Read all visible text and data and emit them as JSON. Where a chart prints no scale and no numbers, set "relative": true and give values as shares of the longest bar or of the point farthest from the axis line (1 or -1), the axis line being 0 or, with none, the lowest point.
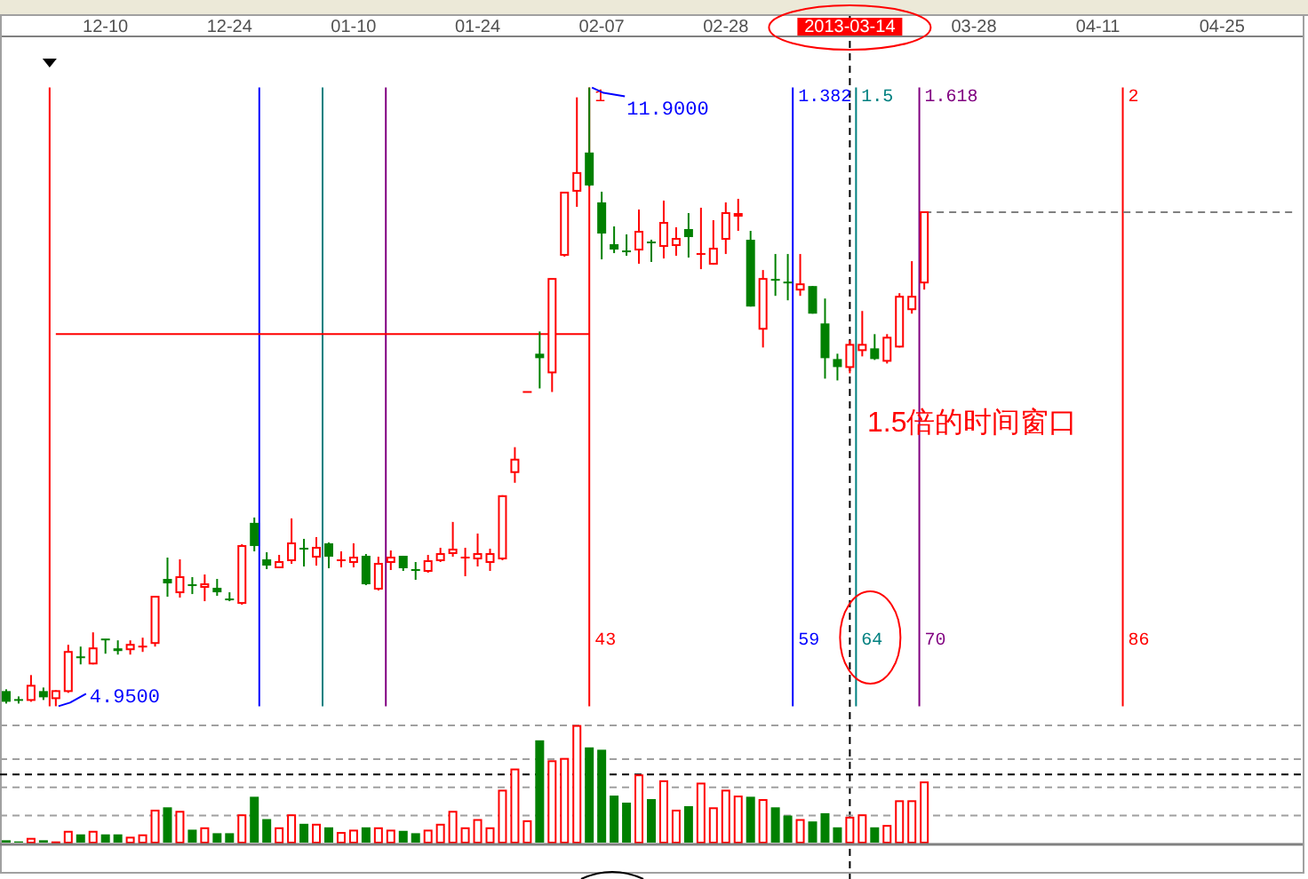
{
  "chart_data": [
    {
      "type": "candlestick",
      "tick_labels": "x",
      "categories": [
        null,
        null,
        null,
        null,
        null,
        null,
        null,
        null,
        "12-10",
        null,
        null,
        null,
        null,
        null,
        null,
        null,
        null,
        null,
        "12-24",
        null,
        null,
        null,
        null,
        null,
        null,
        null,
        null,
        null,
        "01-10",
        null,
        null,
        null,
        null,
        null,
        null,
        null,
        null,
        null,
        "01-24",
        null,
        null,
        null,
        null,
        null,
        null,
        null,
        null,
        null,
        "02-07",
        null,
        null,
        null,
        null,
        null,
        null,
        null,
        null,
        null,
        "02-28",
        null,
        null,
        null,
        null,
        null,
        null,
        null,
        null,
        null,
        "2013-03-14",
        null,
        null,
        null,
        null,
        null,
        null,
        null,
        null,
        null,
        "03-28",
        null,
        null,
        null,
        null,
        null,
        null,
        null,
        null,
        null,
        "04-11",
        null,
        null,
        null,
        null,
        null,
        null,
        null,
        null,
        null,
        "04-25",
        null,
        null,
        null,
        null,
        null,
        null
      ],
      "ohlc": [
        [
          5.12,
          5.14,
          4.98,
          5.0
        ],
        [
          5.02,
          5.06,
          4.98,
          5.02
        ],
        [
          5.02,
          5.3,
          5.0,
          5.18
        ],
        [
          5.12,
          5.16,
          5.02,
          5.05
        ],
        [
          5.04,
          5.13,
          4.95,
          5.12
        ],
        [
          5.12,
          5.64,
          5.1,
          5.56
        ],
        [
          5.5,
          5.62,
          5.42,
          5.5
        ],
        [
          5.43,
          5.78,
          5.42,
          5.6
        ],
        [
          5.7,
          5.7,
          5.54,
          5.7
        ],
        [
          5.6,
          5.69,
          5.53,
          5.57
        ],
        [
          5.59,
          5.69,
          5.53,
          5.64
        ],
        [
          5.62,
          5.72,
          5.56,
          5.62
        ],
        [
          5.66,
          6.19,
          5.62,
          6.18
        ],
        [
          6.38,
          6.62,
          6.18,
          6.33
        ],
        [
          6.23,
          6.6,
          6.17,
          6.4
        ],
        [
          6.31,
          6.4,
          6.21,
          6.31
        ],
        [
          6.29,
          6.43,
          6.13,
          6.32
        ],
        [
          6.28,
          6.38,
          6.19,
          6.23
        ],
        [
          6.15,
          6.23,
          6.13,
          6.15
        ],
        [
          6.11,
          6.77,
          6.09,
          6.75
        ],
        [
          7.01,
          7.07,
          6.69,
          6.75
        ],
        [
          6.6,
          6.68,
          6.49,
          6.53
        ],
        [
          6.51,
          6.65,
          6.5,
          6.57
        ],
        [
          6.59,
          7.06,
          6.55,
          6.78
        ],
        [
          6.72,
          6.83,
          6.52,
          6.72
        ],
        [
          6.63,
          6.85,
          6.53,
          6.73
        ],
        [
          6.78,
          6.79,
          6.5,
          6.63
        ],
        [
          6.59,
          6.69,
          6.51,
          6.59
        ],
        [
          6.57,
          6.78,
          6.51,
          6.62
        ],
        [
          6.64,
          6.66,
          6.31,
          6.32
        ],
        [
          6.27,
          6.63,
          6.25,
          6.55
        ],
        [
          6.57,
          6.7,
          6.48,
          6.62
        ],
        [
          6.64,
          6.64,
          6.47,
          6.5
        ],
        [
          6.48,
          6.57,
          6.37,
          6.48
        ],
        [
          6.47,
          6.65,
          6.45,
          6.58
        ],
        [
          6.59,
          6.73,
          6.57,
          6.66
        ],
        [
          6.67,
          7.02,
          6.63,
          6.71
        ],
        [
          6.62,
          6.73,
          6.41,
          6.62
        ],
        [
          6.61,
          6.89,
          6.52,
          6.66
        ],
        [
          6.57,
          6.72,
          6.47,
          6.66
        ],
        [
          6.61,
          7.32,
          6.59,
          7.31
        ],
        [
          7.58,
          7.86,
          7.46,
          7.72
        ],
        [
          8.48,
          8.48,
          8.48,
          8.48
        ],
        [
          8.91,
          9.16,
          8.52,
          8.86
        ],
        [
          8.7,
          9.75,
          8.48,
          9.75
        ],
        [
          10.02,
          10.72,
          10.0,
          10.72
        ],
        [
          10.74,
          11.79,
          10.56,
          10.94
        ],
        [
          11.17,
          11.9,
          10.79,
          10.8
        ],
        [
          10.61,
          10.73,
          9.97,
          10.26
        ],
        [
          10.14,
          10.34,
          10.04,
          10.08
        ],
        [
          10.06,
          10.25,
          10.01,
          10.06
        ],
        [
          10.08,
          10.53,
          9.92,
          10.28
        ],
        [
          10.16,
          10.19,
          9.94,
          10.16
        ],
        [
          10.12,
          10.63,
          9.98,
          10.38
        ],
        [
          10.13,
          10.33,
          10.01,
          10.2
        ],
        [
          10.31,
          10.49,
          9.99,
          10.22
        ],
        [
          10.03,
          10.55,
          9.86,
          10.03
        ],
        [
          9.92,
          10.41,
          9.91,
          10.09
        ],
        [
          10.2,
          10.61,
          10.03,
          10.49
        ],
        [
          10.46,
          10.65,
          10.29,
          10.48
        ],
        [
          10.19,
          10.29,
          9.44,
          9.44
        ],
        [
          9.19,
          9.85,
          8.98,
          9.75
        ],
        [
          9.74,
          10.03,
          9.56,
          9.74
        ],
        [
          9.71,
          10.03,
          9.51,
          9.71
        ],
        [
          9.63,
          10.03,
          9.56,
          9.69
        ],
        [
          9.67,
          9.67,
          9.36,
          9.36
        ],
        [
          9.25,
          9.53,
          8.63,
          8.86
        ],
        [
          8.85,
          8.91,
          8.61,
          8.76
        ],
        [
          8.76,
          9.06,
          8.69,
          9.01
        ],
        [
          8.95,
          9.39,
          8.88,
          9.01
        ],
        [
          8.97,
          9.13,
          8.84,
          8.85
        ],
        [
          8.83,
          9.13,
          8.8,
          9.09
        ],
        [
          8.99,
          9.59,
          8.98,
          9.55
        ],
        [
          9.41,
          9.95,
          9.36,
          9.55
        ],
        [
          9.71,
          10.5,
          9.63,
          10.5
        ],
        null,
        null,
        null,
        null,
        null,
        null,
        null,
        null,
        null,
        null,
        null,
        null,
        null,
        null,
        null,
        null,
        null,
        null,
        null,
        null,
        null,
        null,
        null,
        null,
        null,
        null,
        null,
        null,
        null,
        null
      ],
      "colors": [
        "#008000",
        "#008000",
        "#ff0000",
        "#008000",
        "#ff0000",
        "#ff0000",
        "#008000",
        "#ff0000",
        "#008000",
        "#008000",
        "#ff0000",
        "#ff0000",
        "#ff0000",
        "#008000",
        "#ff0000",
        "#008000",
        "#ff0000",
        "#008000",
        "#008000",
        "#ff0000",
        "#008000",
        "#008000",
        "#ff0000",
        "#ff0000",
        "#008000",
        "#ff0000",
        "#008000",
        "#ff0000",
        "#ff0000",
        "#008000",
        "#ff0000",
        "#ff0000",
        "#008000",
        "#008000",
        "#ff0000",
        "#ff0000",
        "#ff0000",
        "#ff0000",
        "#ff0000",
        "#ff0000",
        "#ff0000",
        "#ff0000",
        "#ff0000",
        "#008000",
        "#ff0000",
        "#ff0000",
        "#ff0000",
        "#008000",
        "#008000",
        "#008000",
        "#008000",
        "#ff0000",
        "#008000",
        "#ff0000",
        "#ff0000",
        "#008000",
        "#ff0000",
        "#ff0000",
        "#ff0000",
        "#ff0000",
        "#008000",
        "#ff0000",
        "#008000",
        "#008000",
        "#ff0000",
        "#008000",
        "#008000",
        "#008000",
        "#ff0000",
        "#ff0000",
        "#008000",
        "#ff0000",
        "#ff0000",
        "#ff0000",
        "#ff0000",
        null,
        null,
        null,
        null,
        null,
        null,
        null,
        null,
        null,
        null,
        null,
        null,
        null,
        null,
        null,
        null,
        null,
        null,
        null,
        null,
        null,
        null,
        null,
        null,
        null,
        null,
        null,
        null,
        null,
        null
      ],
      "series": [
        {
          "type": "line",
          "color": "#ff0000",
          "values": [
            null,
            null,
            null,
            null,
            9.13,
            9.13,
            9.13,
            9.13,
            9.13,
            9.13,
            9.13,
            9.13,
            9.13,
            9.13,
            9.13,
            9.13,
            9.13,
            9.13,
            9.13,
            9.13,
            9.13,
            9.13,
            9.13,
            9.13,
            9.13,
            9.13,
            9.13,
            9.13,
            9.13,
            9.13,
            9.13,
            9.13,
            9.13,
            9.13,
            9.13,
            9.13,
            9.13,
            9.13,
            9.13,
            9.13,
            9.13,
            9.13,
            9.13,
            9.13,
            9.13,
            9.13,
            9.13,
            9.13,
            null,
            null,
            null,
            null,
            null,
            null,
            null,
            null,
            null,
            null,
            null,
            null,
            null,
            null,
            null,
            null,
            null,
            null,
            null,
            null,
            null,
            null,
            null,
            null,
            null,
            null,
            null,
            null,
            null,
            null,
            null,
            null,
            null,
            null,
            null,
            null,
            null,
            null,
            null,
            null,
            null,
            null,
            null,
            null,
            null,
            null,
            null,
            null,
            null,
            null,
            null,
            null,
            null,
            null,
            null,
            null,
            null
          ]
        },
        {
          "type": "line",
          "color": "#808080",
          "line_style": "dashed",
          "values": [
            null,
            null,
            null,
            null,
            null,
            null,
            null,
            null,
            null,
            null,
            null,
            null,
            null,
            null,
            null,
            null,
            null,
            null,
            null,
            null,
            null,
            null,
            null,
            null,
            null,
            null,
            null,
            null,
            null,
            null,
            null,
            null,
            null,
            null,
            null,
            null,
            null,
            null,
            null,
            null,
            null,
            null,
            null,
            null,
            null,
            null,
            null,
            null,
            null,
            null,
            null,
            null,
            null,
            null,
            null,
            null,
            null,
            null,
            null,
            null,
            null,
            null,
            null,
            null,
            null,
            null,
            null,
            null,
            null,
            null,
            null,
            null,
            null,
            null,
            10.5,
            10.5,
            10.5,
            10.5,
            10.5,
            10.5,
            10.5,
            10.5,
            10.5,
            10.5,
            10.5,
            10.5,
            10.5,
            10.5,
            10.5,
            10.5,
            10.5,
            10.5,
            10.5,
            10.5,
            10.5,
            10.5,
            10.5,
            10.5,
            10.5,
            10.5,
            10.5,
            10.5,
            10.5,
            10.5,
            10.5
          ]
        }
      ],
      "ref_lines": [
        {
          "axis": "x",
          "value": "2013-03-14",
          "color": "#000000",
          "line_style": "dashed"
        }
      ],
      "annotations": [
        "1",
        "1.382",
        "1.5",
        "1.618",
        "2",
        "43",
        "59",
        "64",
        "70",
        "86",
        "11.9000",
        "4.9500",
        "1.5倍的时间窗口"
      ]
    },
    {
      "type": "bar",
      "relative": true,
      "categories": [
        null,
        null,
        null,
        null,
        null,
        null,
        null,
        null,
        null,
        null,
        null,
        null,
        null,
        null,
        null,
        null,
        null,
        null,
        null,
        null,
        null,
        null,
        null,
        null,
        null,
        null,
        null,
        null,
        null,
        null,
        null,
        null,
        null,
        null,
        null,
        null,
        null,
        null,
        null,
        null,
        null,
        null,
        null,
        null,
        null,
        null,
        null,
        null,
        null,
        null,
        null,
        null,
        null,
        null,
        null,
        null,
        null,
        null,
        null,
        null,
        null,
        null,
        null,
        null,
        null,
        null,
        null,
        null,
        null,
        null,
        null,
        null,
        null,
        null,
        null,
        null,
        null,
        null,
        null,
        null,
        null,
        null,
        null,
        null,
        null,
        null,
        null,
        null,
        null,
        null,
        null,
        null,
        null,
        null,
        null,
        null,
        null,
        null,
        null,
        null,
        null,
        null,
        null,
        null,
        null
      ],
      "values": [
        0.02,
        0.01,
        0.04,
        0.02,
        0.01,
        0.1,
        0.07,
        0.1,
        0.07,
        0.07,
        0.05,
        0.07,
        0.28,
        0.3,
        0.27,
        0.11,
        0.13,
        0.08,
        0.08,
        0.24,
        0.39,
        0.2,
        0.13,
        0.24,
        0.16,
        0.16,
        0.13,
        0.09,
        0.11,
        0.13,
        0.13,
        0.11,
        0.1,
        0.08,
        0.11,
        0.16,
        0.27,
        0.13,
        0.2,
        0.13,
        0.45,
        0.63,
        0.19,
        0.87,
        0.7,
        0.72,
        1,
        0.81,
        0.79,
        0.4,
        0.34,
        0.58,
        0.37,
        0.53,
        0.28,
        0.31,
        0.51,
        0.3,
        0.45,
        0.4,
        0.39,
        0.37,
        0.3,
        0.23,
        0.2,
        0.18,
        0.25,
        0.13,
        0.22,
        0.24,
        0.13,
        0.15,
        0.36,
        0.36,
        0.52,
        null,
        null,
        null,
        null,
        null,
        null,
        null,
        null,
        null,
        null,
        null,
        null,
        null,
        null,
        null,
        null,
        null,
        null,
        null,
        null,
        null,
        null,
        null,
        null,
        null,
        null,
        null,
        null,
        null,
        null
      ],
      "colors": [
        "#008000",
        "#008000",
        "#ff0000",
        "#008000",
        "#ff0000",
        "#ff0000",
        "#008000",
        "#ff0000",
        "#008000",
        "#008000",
        "#ff0000",
        "#ff0000",
        "#ff0000",
        "#008000",
        "#ff0000",
        "#008000",
        "#ff0000",
        "#008000",
        "#008000",
        "#ff0000",
        "#008000",
        "#008000",
        "#ff0000",
        "#ff0000",
        "#008000",
        "#ff0000",
        "#008000",
        "#ff0000",
        "#ff0000",
        "#008000",
        "#ff0000",
        "#ff0000",
        "#008000",
        "#008000",
        "#ff0000",
        "#ff0000",
        "#ff0000",
        "#ff0000",
        "#ff0000",
        "#ff0000",
        "#ff0000",
        "#ff0000",
        "#ff0000",
        "#008000",
        "#ff0000",
        "#ff0000",
        "#ff0000",
        "#008000",
        "#008000",
        "#008000",
        "#008000",
        "#ff0000",
        "#008000",
        "#ff0000",
        "#ff0000",
        "#008000",
        "#ff0000",
        "#ff0000",
        "#ff0000",
        "#ff0000",
        "#008000",
        "#ff0000",
        "#008000",
        "#008000",
        "#ff0000",
        "#008000",
        "#008000",
        "#008000",
        "#ff0000",
        "#ff0000",
        "#008000",
        "#ff0000",
        "#ff0000",
        "#ff0000",
        "#ff0000",
        null,
        null,
        null,
        null,
        null,
        null,
        null,
        null,
        null,
        null,
        null,
        null,
        null,
        null,
        null,
        null,
        null,
        null,
        null,
        null,
        null,
        null,
        null,
        null,
        null,
        null,
        null,
        null,
        null,
        null
      ],
      "ref_lines": [
        {
          "axis": "y",
          "value": 0.71,
          "color": "#a0a0a0",
          "line_style": "dashed"
        },
        {
          "axis": "y",
          "value": 0.58,
          "color": "#000000",
          "line_style": "dashed"
        },
        {
          "axis": "y",
          "value": 0.47,
          "color": "#a0a0a0",
          "line_style": "dashed"
        },
        {
          "axis": "y",
          "value": 0.23,
          "color": "#a0a0a0",
          "line_style": "dashed"
        }
      ]
    }
  ]
}
